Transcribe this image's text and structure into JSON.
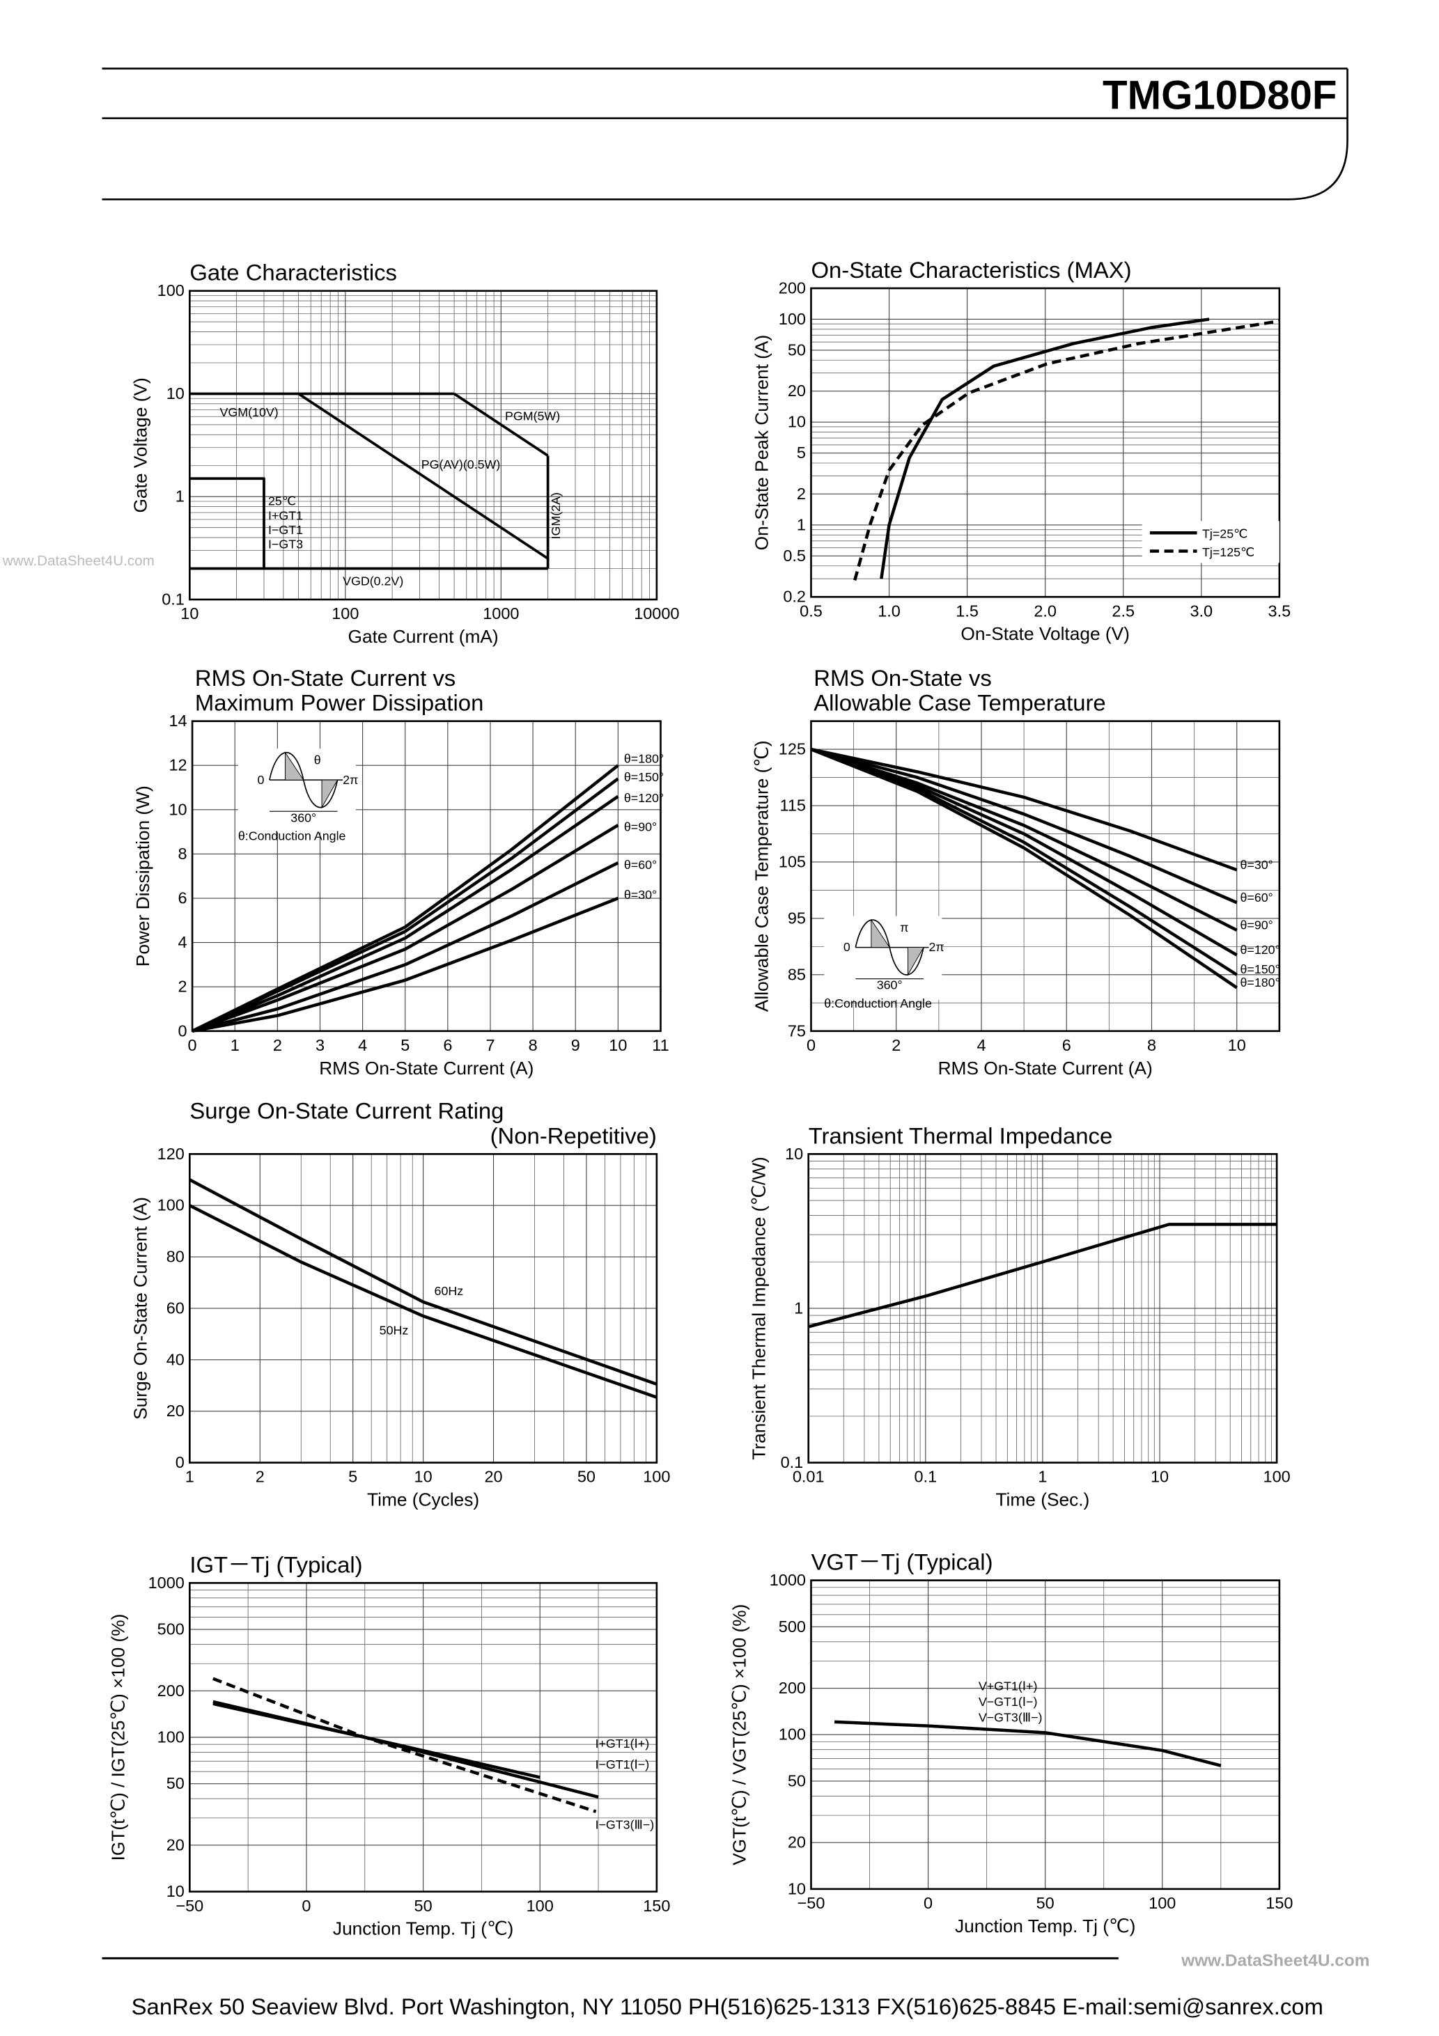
{
  "header": {
    "part_number": "TMG10D80F"
  },
  "watermark": "www.DataSheet4U.com",
  "chart_data": [
    {
      "type": "line",
      "title": [
        "Gate Characteristics"
      ],
      "xlabel": "Gate Current (mA)",
      "ylabel": "Gate Voltage (V)",
      "xlog": true,
      "ylog": true,
      "xlim": [
        10,
        10000
      ],
      "ylim": [
        0.1,
        100
      ],
      "xticks": [
        10,
        100,
        1000,
        10000
      ],
      "yticks": [
        0.1,
        1,
        10,
        100
      ],
      "xminor": [
        20,
        30,
        40,
        50,
        60,
        70,
        80,
        90,
        200,
        300,
        400,
        500,
        600,
        700,
        800,
        900,
        2000,
        3000,
        4000,
        5000,
        6000,
        7000,
        8000,
        9000
      ],
      "yminor": [
        0.2,
        0.3,
        0.4,
        0.5,
        0.6,
        0.7,
        0.8,
        0.9,
        2,
        3,
        4,
        5,
        6,
        7,
        8,
        9,
        20,
        30,
        40,
        50,
        60,
        70,
        80,
        90
      ],
      "series": [
        {
          "name": "VGM(10V)",
          "color": "#000000",
          "x": [
            10,
            500
          ],
          "values": [
            10,
            10
          ]
        },
        {
          "name": "PGM(5W)",
          "color": "#000000",
          "x": [
            500,
            2000
          ],
          "values": [
            10,
            2.5
          ]
        },
        {
          "name": "PG(AV)(0.5W)",
          "color": "#000000",
          "x": [
            50,
            2000
          ],
          "values": [
            10,
            0.25
          ]
        },
        {
          "name": "IGM(2A)",
          "color": "#000000",
          "x": [
            2000,
            2000
          ],
          "values": [
            2.5,
            0.2
          ]
        },
        {
          "name": "VGD(0.2V)",
          "color": "#000000",
          "x": [
            10,
            2000
          ],
          "values": [
            0.2,
            0.2
          ]
        },
        {
          "name": "25℃ I+GT1 I−GT1 I−GT3",
          "color": "#000000",
          "x": [
            10,
            30,
            30
          ],
          "values": [
            1.5,
            1.5,
            0.2
          ]
        }
      ]
    },
    {
      "type": "line",
      "title": [
        "On-State Characteristics (MAX)"
      ],
      "xlabel": "On-State Voltage (V)",
      "ylabel": "On-State Peak Current (A)",
      "ylog": true,
      "legend": "lower right",
      "xlim": [
        0.5,
        3.5
      ],
      "ylim": [
        0.2,
        200
      ],
      "xticks": [
        0.5,
        {
          "value": 1,
          "label": "1.0"
        },
        1.5,
        {
          "value": 2,
          "label": "2.0"
        },
        2.5,
        {
          "value": 3,
          "label": "3.0"
        },
        3.5
      ],
      "yticks": [
        0.2,
        0.5,
        1,
        2,
        5,
        10,
        20,
        50,
        100,
        200
      ],
      "yminor": [
        0.3,
        0.4,
        0.6,
        0.7,
        0.8,
        0.9,
        3,
        4,
        6,
        7,
        8,
        9,
        30,
        40,
        60,
        70,
        80,
        90
      ],
      "series": [
        {
          "name": "Tj=25℃",
          "color": "#000000",
          "x": [
            0.95,
            1.0,
            1.13,
            1.34,
            1.67,
            2.18,
            2.68,
            3.05
          ],
          "values": [
            0.3,
            1,
            4.5,
            16.6,
            35,
            58,
            83,
            100
          ]
        },
        {
          "name": "Tj=125℃",
          "color": "#000000",
          "dash": true,
          "x": [
            0.78,
            0.88,
            1.0,
            1.21,
            1.51,
            2.01,
            2.6,
            3.5
          ],
          "values": [
            0.29,
            1.03,
            3.4,
            9.3,
            19.2,
            36.8,
            58,
            96
          ]
        }
      ]
    },
    {
      "type": "line",
      "title": [
        "RMS On-State Current vs",
        "Maximum Power Dissipation"
      ],
      "xlabel": "RMS On-State Current (A)",
      "ylabel": "Power Dissipation (W)",
      "xlim": [
        0,
        11
      ],
      "ylim": [
        0,
        14
      ],
      "xticks": [
        0,
        1,
        2,
        3,
        4,
        5,
        6,
        7,
        8,
        9,
        10,
        11
      ],
      "yticks": [
        0,
        2,
        4,
        6,
        8,
        10,
        12,
        14
      ],
      "inset": {
        "labels": [
          "0",
          "θ",
          "2π",
          "360°"
        ],
        "caption": "θ:Conduction Angle"
      },
      "series": [
        {
          "name": "θ=180°",
          "color": "#000000",
          "x": [
            0,
            2,
            5,
            7.5,
            10
          ],
          "values": [
            0,
            1.9,
            4.7,
            8.2,
            12.0
          ]
        },
        {
          "name": "θ=150°",
          "color": "#000000",
          "x": [
            0,
            2,
            5,
            7.5,
            10
          ],
          "values": [
            0,
            1.8,
            4.5,
            7.8,
            11.4
          ]
        },
        {
          "name": "θ=120°",
          "color": "#000000",
          "x": [
            0,
            2,
            5,
            7.5,
            10
          ],
          "values": [
            0,
            1.6,
            4.2,
            7.3,
            10.6
          ]
        },
        {
          "name": "θ=90°",
          "color": "#000000",
          "x": [
            0,
            2,
            5,
            7.5,
            10
          ],
          "values": [
            0,
            1.4,
            3.7,
            6.4,
            9.3
          ]
        },
        {
          "name": "θ=60°",
          "color": "#000000",
          "x": [
            0,
            2,
            5,
            7.5,
            10
          ],
          "values": [
            0,
            1.0,
            3.0,
            5.2,
            7.6
          ]
        },
        {
          "name": "θ=30°",
          "color": "#000000",
          "x": [
            0,
            2,
            5,
            7.5,
            10
          ],
          "values": [
            0,
            0.7,
            2.3,
            4.1,
            6.0
          ]
        }
      ]
    },
    {
      "type": "line",
      "title": [
        "RMS On-State vs",
        "Allowable Case Temperature"
      ],
      "xlabel": "RMS On-State Current (A)",
      "ylabel": "Allowable Case Temperature (℃)",
      "xlim": [
        0,
        11
      ],
      "ylim": [
        75,
        130
      ],
      "xticks": [
        0,
        2,
        4,
        6,
        8,
        10
      ],
      "yticks": [
        75,
        85,
        95,
        105,
        115,
        125
      ],
      "xminor": [
        1,
        3,
        5,
        7,
        9
      ],
      "yminor": [
        80,
        90,
        100,
        110,
        120
      ],
      "inset": {
        "labels": [
          "0",
          "π",
          "2π",
          "360°"
        ],
        "caption": "θ:Conduction Angle"
      },
      "series": [
        {
          "name": "θ=30°",
          "color": "#000000",
          "x": [
            0,
            2.5,
            5,
            7.5,
            10
          ],
          "values": [
            125,
            121,
            116.5,
            110.5,
            103.6
          ]
        },
        {
          "name": "θ=60°",
          "color": "#000000",
          "x": [
            0,
            2.5,
            5,
            7.5,
            10
          ],
          "values": [
            125,
            120,
            113.5,
            106,
            97.8
          ]
        },
        {
          "name": "θ=90°",
          "color": "#000000",
          "x": [
            0,
            2.5,
            5,
            7.5,
            10
          ],
          "values": [
            125,
            119,
            111.5,
            102.5,
            92.9
          ]
        },
        {
          "name": "θ=120°",
          "color": "#000000",
          "x": [
            0,
            2.5,
            5,
            7.5,
            10
          ],
          "values": [
            125,
            118.5,
            110,
            99.5,
            88.5
          ]
        },
        {
          "name": "θ=150°",
          "color": "#000000",
          "x": [
            0,
            2.5,
            5,
            7.5,
            10
          ],
          "values": [
            125,
            118,
            108.5,
            97,
            85
          ]
        },
        {
          "name": "θ=180°",
          "color": "#000000",
          "x": [
            0,
            2.5,
            5,
            7.5,
            10
          ],
          "values": [
            125,
            117.5,
            107.5,
            95.5,
            82.7
          ]
        }
      ]
    },
    {
      "type": "line",
      "title": [
        "Surge On-State Current Rating",
        "(Non-Repetitive)"
      ],
      "xlabel": "Time (Cycles)",
      "ylabel": "Surge On-State Current (A)",
      "xlog": true,
      "xlim": [
        1,
        100
      ],
      "ylim": [
        0,
        120
      ],
      "xticks": [
        1,
        2,
        5,
        10,
        20,
        50,
        100
      ],
      "yticks": [
        0,
        20,
        40,
        60,
        80,
        100,
        120
      ],
      "xminor": [
        3,
        4,
        6,
        7,
        8,
        9,
        30,
        40,
        60,
        70,
        80,
        90
      ],
      "series": [
        {
          "name": "60Hz",
          "color": "#000000",
          "x": [
            1,
            3,
            10,
            100
          ],
          "values": [
            110,
            87,
            62.5,
            30.5
          ]
        },
        {
          "name": "50Hz",
          "color": "#000000",
          "x": [
            1,
            3,
            10,
            100
          ],
          "values": [
            100,
            78,
            57,
            25.4
          ]
        }
      ]
    },
    {
      "type": "line",
      "title": [
        "Transient Thermal Impedance"
      ],
      "xlabel": "Time (Sec.)",
      "ylabel": "Transient Thermal Impedance (℃/W)",
      "xlog": true,
      "ylog": true,
      "xlim": [
        0.01,
        100
      ],
      "ylim": [
        0.1,
        10
      ],
      "xticks": [
        0.01,
        0.1,
        1,
        10,
        100
      ],
      "yticks": [
        0.1,
        1,
        10
      ],
      "xminor": [
        0.02,
        0.03,
        0.04,
        0.05,
        0.06,
        0.07,
        0.08,
        0.09,
        0.2,
        0.3,
        0.4,
        0.5,
        0.6,
        0.7,
        0.8,
        0.9,
        2,
        3,
        4,
        5,
        6,
        7,
        8,
        9,
        20,
        30,
        40,
        50,
        60,
        70,
        80,
        90
      ],
      "yminor": [
        0.2,
        0.3,
        0.4,
        0.5,
        0.6,
        0.7,
        0.8,
        0.9,
        2,
        3,
        4,
        5,
        6,
        7,
        8,
        9
      ],
      "series": [
        {
          "color": "#000000",
          "x": [
            0.01,
            0.1,
            1,
            12,
            100
          ],
          "values": [
            0.76,
            1.2,
            2.0,
            3.5,
            3.5
          ]
        }
      ]
    },
    {
      "type": "line",
      "title": [
        "IGT－Tj (Typical)"
      ],
      "xlabel": "Junction Temp. Tj (℃)",
      "ylabel": "IGT(t℃) / IGT(25℃) ×100 (%)",
      "ylog": true,
      "xlim": [
        -50,
        150
      ],
      "ylim": [
        10,
        1000
      ],
      "xticks": [
        {
          "value": -50,
          "label": "−50"
        },
        0,
        50,
        100,
        150
      ],
      "yticks": [
        10,
        20,
        50,
        100,
        200,
        500,
        1000
      ],
      "xminor": [
        -25,
        25,
        75,
        125
      ],
      "yminor": [
        30,
        40,
        60,
        70,
        80,
        90,
        300,
        400,
        600,
        700,
        800,
        900
      ],
      "series": [
        {
          "name": "I+GT1(Ⅰ+)",
          "color": "#000000",
          "x": [
            -40,
            25,
            100
          ],
          "values": [
            170,
            100,
            55
          ]
        },
        {
          "name": "I−GT1(Ⅰ−)",
          "color": "#000000",
          "x": [
            -40,
            25,
            125
          ],
          "values": [
            165,
            100,
            41
          ]
        },
        {
          "name": "I−GT3(Ⅲ−)",
          "color": "#000000",
          "dash": true,
          "x": [
            -40,
            25,
            124
          ],
          "values": [
            240,
            100,
            33
          ]
        }
      ]
    },
    {
      "type": "line",
      "title": [
        "VGT－Tj (Typical)"
      ],
      "xlabel": "Junction Temp. Tj (℃)",
      "ylabel": "VGT(t℃) / VGT(25℃) ×100 (%)",
      "ylog": true,
      "xlim": [
        -50,
        150
      ],
      "ylim": [
        10,
        1000
      ],
      "xticks": [
        {
          "value": -50,
          "label": "−50"
        },
        0,
        50,
        100,
        150
      ],
      "yticks": [
        10,
        20,
        50,
        100,
        200,
        500,
        1000
      ],
      "xminor": [
        -25,
        25,
        75,
        125
      ],
      "yminor": [
        30,
        40,
        60,
        70,
        80,
        90,
        300,
        400,
        600,
        700,
        800,
        900
      ],
      "curve_labels": [
        "V+GT1(Ⅰ+)",
        "V−GT1(Ⅰ−)",
        "V−GT3(Ⅲ−)"
      ],
      "series": [
        {
          "color": "#000000",
          "x": [
            -40,
            0,
            50,
            100,
            125
          ],
          "values": [
            121,
            114,
            103,
            79,
            63
          ]
        }
      ]
    }
  ],
  "footer": {
    "address": "SanRex 50 Seaview Blvd. Port Washington, NY 11050 PH(516)625-1313 FX(516)625-8845 E-mail:semi@sanrex.com"
  }
}
